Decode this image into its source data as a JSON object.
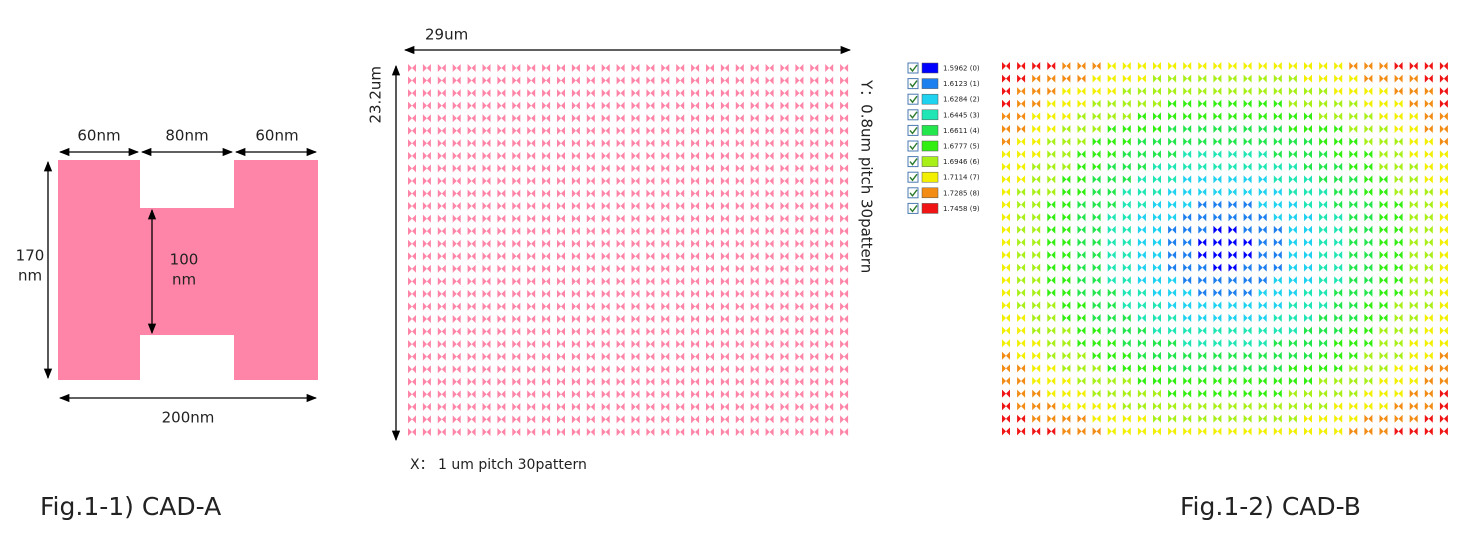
{
  "cad_a": {
    "top_left_width": "60nm",
    "top_middle_width": "80nm",
    "top_right_width": "60nm",
    "height_line1": "170",
    "height_line2": "nm",
    "bar_line1": "100",
    "bar_line2": "nm",
    "total_width": "200nm",
    "caption": "Fig.1-1) CAD-A"
  },
  "array": {
    "width": "29um",
    "height": "23.2um",
    "y_pitch": "Y：0.8um pitch 30pattern",
    "x_pitch": "X： 1 um pitch 30pattern"
  },
  "cad_b": {
    "caption": "Fig.1-2) CAD-B",
    "legend": [
      {
        "label": "1.5962 (0)",
        "color": "#0000ff"
      },
      {
        "label": "1.6123 (1)",
        "color": "#1e7fef"
      },
      {
        "label": "1.6284 (2)",
        "color": "#1fd2f0"
      },
      {
        "label": "1.6445 (3)",
        "color": "#1fe6b4"
      },
      {
        "label": "1.6611 (4)",
        "color": "#22e64c"
      },
      {
        "label": "1.6777 (5)",
        "color": "#33ee11"
      },
      {
        "label": "1.6946 (6)",
        "color": "#a8f018"
      },
      {
        "label": "1.7114 (7)",
        "color": "#f2f000"
      },
      {
        "label": "1.7285 (8)",
        "color": "#f28c14"
      },
      {
        "label": "1.7458 (9)",
        "color": "#f01414"
      }
    ]
  }
}
